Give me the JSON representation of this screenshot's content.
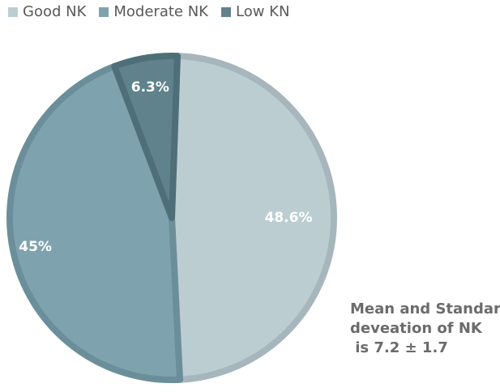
{
  "chart_data": {
    "type": "pie",
    "slices": [
      {
        "name": "Good NK",
        "value": 48.6,
        "label": "48.6%",
        "color": "#bccdd2",
        "border": "#a6b6bc"
      },
      {
        "name": "Moderate NK",
        "value": 45,
        "label": "45%",
        "color": "#7fa3ae",
        "border": "#6b8f9a"
      },
      {
        "name": "Low KN",
        "value": 6.3,
        "label": "6.3%",
        "color": "#5f828c",
        "border": "#4f6f78"
      }
    ],
    "legend_position": "top-left",
    "annotation": [
      "Mean and Standard",
      "deveation of NK",
      " is 7.2 ± 1.7"
    ]
  }
}
